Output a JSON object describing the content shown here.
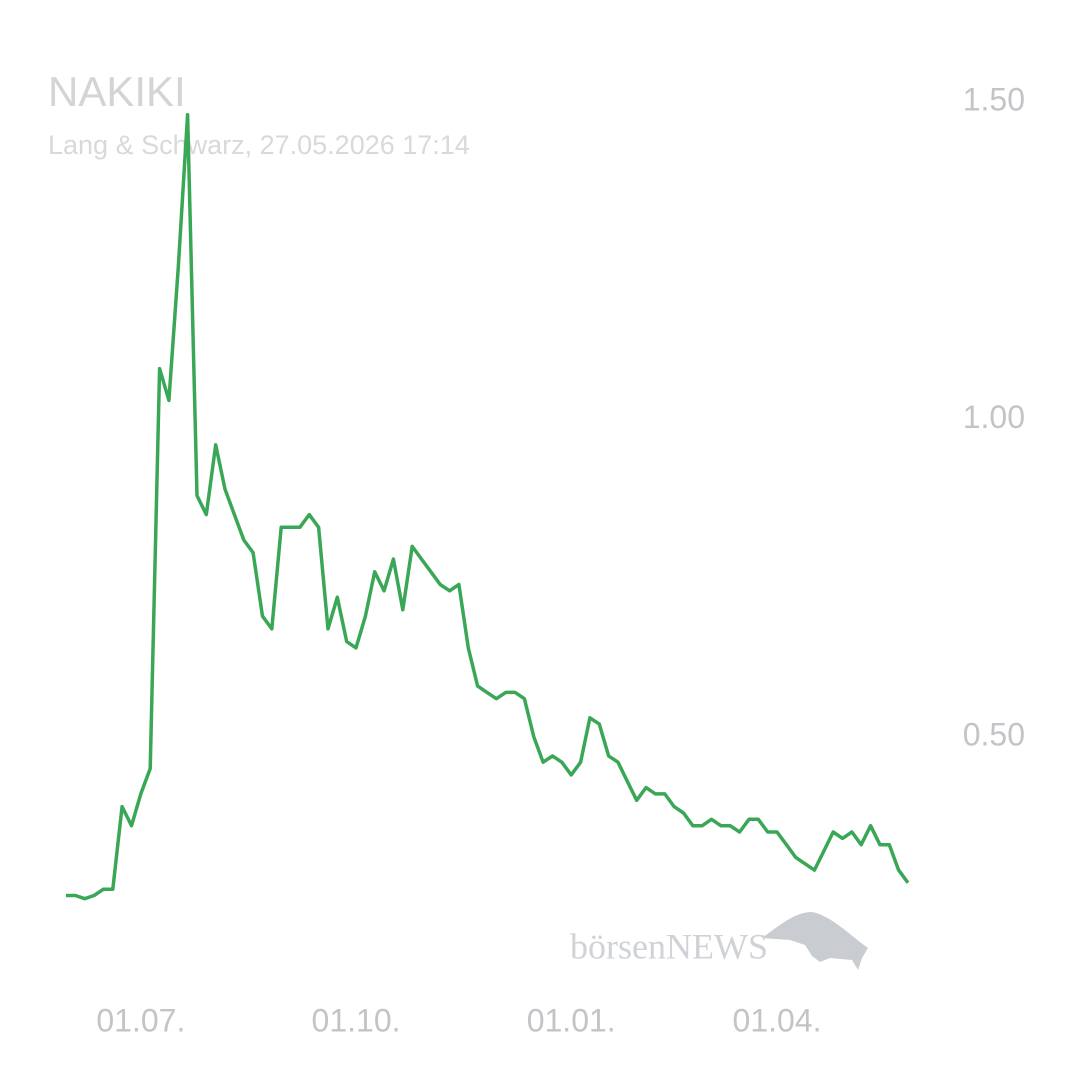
{
  "chart_data": {
    "type": "line",
    "title": "NAKIKI",
    "subtitle": "Lang & Schwarz, 27.05.2026 17:14",
    "watermark": "börsenNEWS",
    "categories": [
      null,
      null,
      null,
      null,
      null,
      null,
      null,
      null,
      "01.07.",
      null,
      null,
      null,
      null,
      null,
      null,
      null,
      null,
      null,
      null,
      null,
      null,
      null,
      null,
      null,
      null,
      null,
      null,
      null,
      null,
      null,
      null,
      "01.10.",
      null,
      null,
      null,
      null,
      null,
      null,
      null,
      null,
      null,
      null,
      null,
      null,
      null,
      null,
      null,
      null,
      null,
      null,
      null,
      null,
      null,
      null,
      "01.01.",
      null,
      null,
      null,
      null,
      null,
      null,
      null,
      null,
      null,
      null,
      null,
      null,
      null,
      null,
      null,
      null,
      null,
      null,
      null,
      null,
      null,
      "01.04.",
      null,
      null,
      null,
      null,
      null,
      null,
      null,
      null,
      null,
      null,
      null,
      null,
      null,
      null
    ],
    "series": [
      {
        "color": "#3aa757",
        "values": [
          0.25,
          0.25,
          0.245,
          0.25,
          0.26,
          0.26,
          0.39,
          0.36,
          0.41,
          0.45,
          1.08,
          1.03,
          1.24,
          1.48,
          0.88,
          0.85,
          0.96,
          0.89,
          0.85,
          0.81,
          0.79,
          0.69,
          0.67,
          0.83,
          0.83,
          0.83,
          0.85,
          0.83,
          0.67,
          0.72,
          0.65,
          0.64,
          0.69,
          0.76,
          0.73,
          0.78,
          0.7,
          0.8,
          0.78,
          0.76,
          0.74,
          0.73,
          0.74,
          0.64,
          0.58,
          0.57,
          0.56,
          0.57,
          0.57,
          0.56,
          0.5,
          0.46,
          0.47,
          0.46,
          0.44,
          0.46,
          0.53,
          0.52,
          0.47,
          0.46,
          0.43,
          0.4,
          0.42,
          0.41,
          0.41,
          0.39,
          0.38,
          0.36,
          0.36,
          0.37,
          0.36,
          0.36,
          0.35,
          0.37,
          0.37,
          0.35,
          0.35,
          0.33,
          0.31,
          0.3,
          0.29,
          0.32,
          0.35,
          0.34,
          0.35,
          0.33,
          0.36,
          0.33,
          0.33,
          0.29,
          0.27
        ]
      }
    ],
    "ylim": [
      0.15,
      1.55
    ],
    "yticks": [
      {
        "value": 0.5,
        "label": "0.50"
      },
      {
        "value": 1,
        "label": "1.00"
      },
      {
        "value": 1.5,
        "label": "1.50"
      }
    ],
    "grid": false
  }
}
